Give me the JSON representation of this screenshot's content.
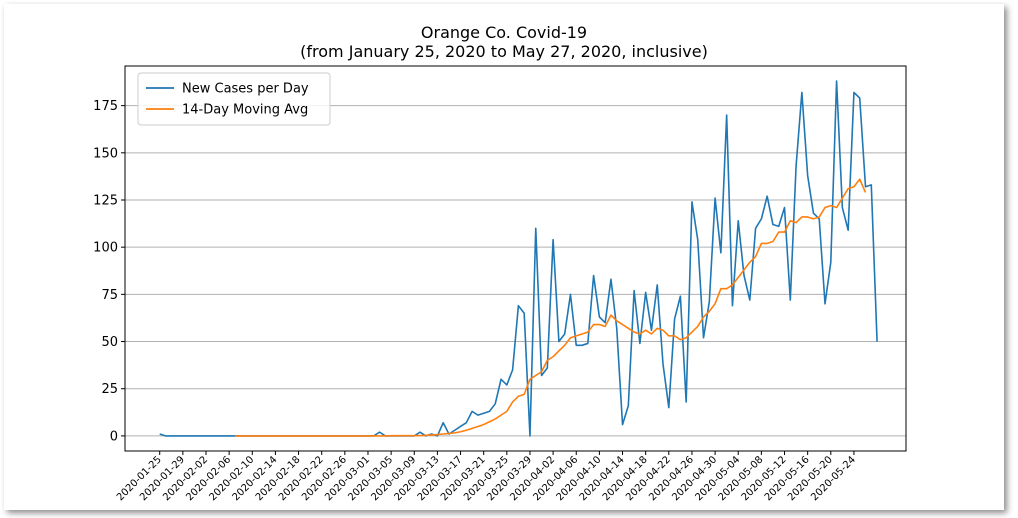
{
  "chart_data": {
    "type": "line",
    "title": "Orange Co. Covid-19",
    "subtitle": "(from January 25, 2020 to May 27, 2020, inclusive)",
    "xlabel": "",
    "ylabel": "",
    "x_start": "2020-01-25",
    "x_end": "2020-05-27",
    "ylim": [
      -8,
      196
    ],
    "yticks": [
      0,
      25,
      50,
      75,
      100,
      125,
      150,
      175
    ],
    "xticks": [
      "2020-01-25",
      "2020-01-29",
      "2020-02-02",
      "2020-02-06",
      "2020-02-10",
      "2020-02-14",
      "2020-02-18",
      "2020-02-22",
      "2020-02-26",
      "2020-03-01",
      "2020-03-05",
      "2020-03-09",
      "2020-03-13",
      "2020-03-17",
      "2020-03-21",
      "2020-03-25",
      "2020-03-29",
      "2020-04-02",
      "2020-04-06",
      "2020-04-10",
      "2020-04-14",
      "2020-04-18",
      "2020-04-22",
      "2020-04-26",
      "2020-04-30",
      "2020-05-04",
      "2020-05-08",
      "2020-05-12",
      "2020-05-16",
      "2020-05-20",
      "2020-05-24"
    ],
    "grid": "horizontal",
    "legend_position": "top-left",
    "series": [
      {
        "name": "New Cases per Day",
        "color": "#1f77b4",
        "start": "2020-01-25",
        "values": [
          1,
          0,
          0,
          0,
          0,
          0,
          0,
          0,
          0,
          0,
          0,
          0,
          0,
          0,
          0,
          0,
          0,
          0,
          0,
          0,
          0,
          0,
          0,
          0,
          0,
          0,
          0,
          0,
          0,
          0,
          0,
          0,
          0,
          0,
          0,
          0,
          0,
          0,
          2,
          0,
          0,
          0,
          0,
          0,
          0,
          2,
          0,
          1,
          0,
          7,
          1,
          3,
          5,
          7,
          13,
          11,
          12,
          13,
          17,
          30,
          27,
          35,
          69,
          65,
          0,
          110,
          32,
          36,
          104,
          50,
          54,
          75,
          48,
          48,
          49,
          85,
          63,
          60,
          83,
          57,
          6,
          16,
          77,
          49,
          76,
          56,
          80,
          38,
          15,
          62,
          74,
          18,
          124,
          104,
          52,
          71,
          126,
          97,
          170,
          69,
          114,
          85,
          72,
          110,
          115,
          127,
          112,
          111,
          121,
          72,
          143,
          182,
          138,
          118,
          115,
          70,
          92,
          188,
          121,
          109,
          182,
          179,
          132,
          133,
          50
        ]
      },
      {
        "name": "14-Day Moving Avg",
        "color": "#ff7f0e",
        "start": "2020-02-07",
        "values": [
          0,
          0,
          0,
          0,
          0,
          0,
          0,
          0,
          0,
          0,
          0,
          0,
          0,
          0,
          0,
          0,
          0,
          0,
          0,
          0,
          0,
          0,
          0,
          0,
          0,
          0,
          0,
          0.1,
          0.1,
          0.1,
          0.1,
          0.1,
          0.2,
          0.3,
          0.5,
          0.7,
          1,
          1.3,
          1.6,
          2.2,
          3,
          4,
          5,
          6,
          7.5,
          9,
          11,
          13,
          18,
          21,
          22,
          30,
          32,
          34,
          40,
          42,
          45,
          48,
          52,
          53,
          54,
          55,
          59,
          59,
          58,
          64,
          61,
          59,
          57,
          55,
          54,
          56,
          54,
          57,
          56,
          53,
          53,
          51,
          52,
          55,
          58,
          63,
          66,
          70,
          78,
          78,
          80,
          84,
          88,
          92,
          95,
          102,
          102,
          103,
          108,
          108,
          114,
          113,
          116,
          116,
          115,
          116,
          121,
          122,
          121,
          126,
          131,
          132,
          136,
          129
        ]
      }
    ]
  }
}
